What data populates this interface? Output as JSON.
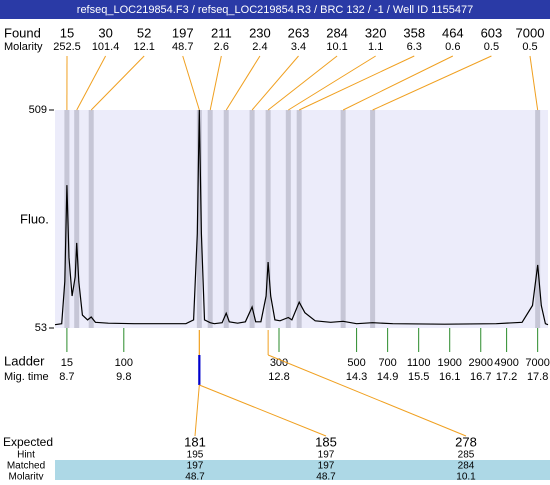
{
  "header": {
    "title": "refseq_LOC219854.F3 / refseq_LOC219854.R3 / BRC 132 / -1 / Well ID 1155477"
  },
  "found": {
    "label": "Found",
    "molarity_label": "Molarity",
    "peaks": [
      {
        "size": 15,
        "molarity": 252.5,
        "time": 8.7
      },
      {
        "size": 30,
        "molarity": 101.4,
        "time": 8.89
      },
      {
        "size": 52,
        "molarity": 12.1,
        "time": 9.17
      },
      {
        "size": 197,
        "molarity": 48.7,
        "time": 11.26
      },
      {
        "size": 211,
        "molarity": 2.6,
        "time": 11.47
      },
      {
        "size": 230,
        "molarity": 2.4,
        "time": 11.78
      },
      {
        "size": 263,
        "molarity": 3.4,
        "time": 12.28
      },
      {
        "size": 284,
        "molarity": 10.1,
        "time": 12.59
      },
      {
        "size": 320,
        "molarity": 1.1,
        "time": 12.98
      },
      {
        "size": 358,
        "molarity": 6.3,
        "time": 13.19
      },
      {
        "size": 464,
        "molarity": 0.6,
        "time": 14.04
      },
      {
        "size": 603,
        "molarity": 0.5,
        "time": 14.61
      },
      {
        "size": 7000,
        "molarity": 0.5,
        "time": 17.8
      }
    ]
  },
  "plot": {
    "ylabel": "Fluo.",
    "ylim": [
      53,
      509
    ],
    "yticks": [
      53,
      509
    ],
    "xlim": [
      8.47,
      18.0
    ],
    "color": "#000000",
    "background": "#ececfa",
    "band_color": "#c6c6d6",
    "trace": {
      "x": [
        8.47,
        8.6,
        8.66,
        8.7,
        8.74,
        8.8,
        8.86,
        8.89,
        8.93,
        9.0,
        9.1,
        9.17,
        9.25,
        9.5,
        10.0,
        10.5,
        11.0,
        11.15,
        11.22,
        11.26,
        11.3,
        11.36,
        11.47,
        11.55,
        11.7,
        11.78,
        11.84,
        12.0,
        12.15,
        12.28,
        12.35,
        12.45,
        12.55,
        12.59,
        12.64,
        12.72,
        12.82,
        12.98,
        13.05,
        13.19,
        13.3,
        13.5,
        13.8,
        14.04,
        14.3,
        14.61,
        15.0,
        16.0,
        17.0,
        17.5,
        17.7,
        17.8,
        17.87,
        17.95,
        18.0
      ],
      "y": [
        60,
        62,
        150,
        352,
        200,
        120,
        160,
        231,
        150,
        80,
        70,
        76,
        65,
        63,
        62,
        62,
        62,
        70,
        250,
        509,
        250,
        70,
        64,
        62,
        64,
        84,
        66,
        63,
        66,
        97,
        66,
        66,
        120,
        191,
        120,
        70,
        68,
        75,
        70,
        107,
        85,
        68,
        65,
        67,
        62,
        64,
        62,
        61,
        62,
        65,
        100,
        185,
        100,
        62,
        60
      ]
    }
  },
  "ladder": {
    "label": "Ladder",
    "time_label": "Mig. time",
    "sizes": [
      15,
      100,
      300,
      500,
      700,
      1100,
      1900,
      2900,
      4900,
      7000
    ],
    "times": [
      8.7,
      9.8,
      12.8,
      14.3,
      14.9,
      15.5,
      16.1,
      16.7,
      17.2,
      17.8
    ]
  },
  "expected": {
    "labels": [
      "Expected",
      "Hint",
      "Matched",
      "Molarity"
    ],
    "columns": [
      {
        "expected": 181,
        "hint": 195,
        "matched": 197,
        "molarity": 48.7
      },
      {
        "expected": 185,
        "hint": 197,
        "matched": 197,
        "molarity": 48.7
      },
      {
        "expected": 278,
        "hint": 285,
        "matched": 284,
        "molarity": 10.1
      }
    ]
  }
}
